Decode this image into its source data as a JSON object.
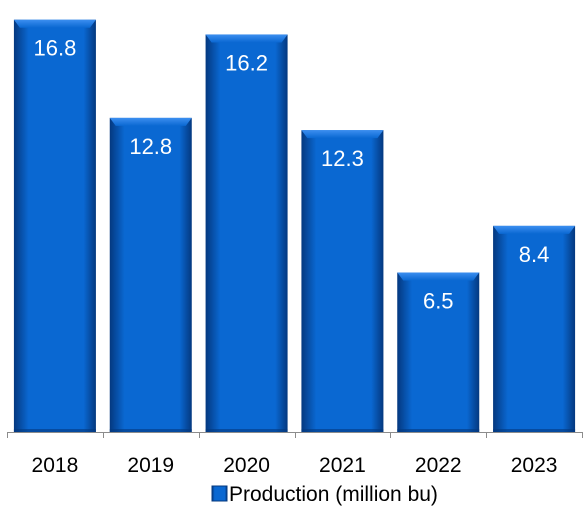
{
  "chart_data": {
    "type": "bar",
    "categories": [
      "2018",
      "2019",
      "2020",
      "2021",
      "2022",
      "2023"
    ],
    "series": [
      {
        "name": "Production (million bu)",
        "values": [
          16.8,
          12.8,
          16.2,
          12.3,
          6.5,
          8.4
        ]
      }
    ],
    "title": "",
    "xlabel": "",
    "ylabel": "",
    "ylim": [
      0,
      17.4
    ],
    "grid": false,
    "legend": "bottom",
    "data_labels": true,
    "colors": {
      "bar": "#0a68d2",
      "bar_dark": "#04387f",
      "bar_light": "#3c8ff0",
      "label_text": "#ffffff",
      "axis": "#8c8c8c",
      "text": "#000000"
    }
  }
}
